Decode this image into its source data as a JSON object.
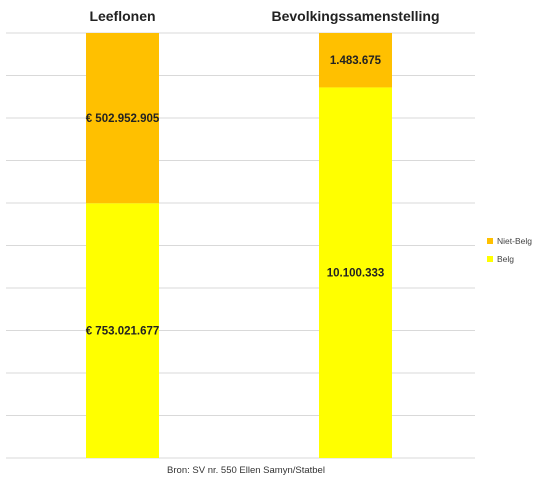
{
  "chart_data": {
    "type": "bar",
    "stacked": "percent",
    "categories": [
      "Leeflonen",
      "Bevolkingssamenstelling"
    ],
    "series": [
      {
        "name": "Belg",
        "color": "#FFFF00",
        "values": [
          753021677,
          10100333
        ],
        "labels": [
          "€ 753.021.677",
          "10.100.333"
        ]
      },
      {
        "name": "Niet-Belg",
        "color": "#FFC000",
        "values": [
          502952905,
          1483675
        ],
        "labels": [
          "€ 502.952.905",
          "1.483.675"
        ]
      }
    ],
    "legend_order": [
      "Niet-Belg",
      "Belg"
    ],
    "legend_position": "right",
    "grid": true,
    "gridline_color": "#d9d9d9",
    "source": "Bron: SV nr. 550 Ellen Samyn/Statbel"
  }
}
